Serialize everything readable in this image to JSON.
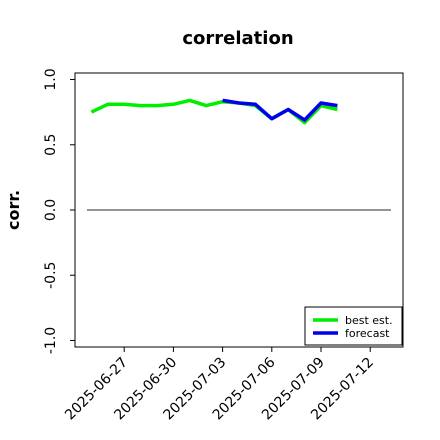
{
  "chart_data": {
    "type": "line",
    "title": "correlation",
    "ylabel": "corr.",
    "xlabel": "",
    "ylim": [
      -1.05,
      1.05
    ],
    "yticks": [
      1.0,
      0.5,
      0.0,
      -0.5,
      -1.0
    ],
    "ytick_labels": [
      "1.0",
      "0.5",
      "0.0",
      "-0.5",
      "-1.0"
    ],
    "xlim": [
      "2025-06-24",
      "2025-07-14"
    ],
    "xticks": [
      "2025-06-27",
      "2025-06-30",
      "2025-07-03",
      "2025-07-06",
      "2025-07-09",
      "2025-07-12"
    ],
    "highlight_tick": {
      "label": "2025-07-03",
      "color": "#228B22"
    },
    "grid": false,
    "legend": "lower-right",
    "reference_line": {
      "y": 0.0,
      "color": "#555555"
    },
    "series": [
      {
        "name": "best est.",
        "color": "#00ee00",
        "points": [
          [
            "2025-06-25",
            0.75
          ],
          [
            "2025-06-26",
            0.81
          ],
          [
            "2025-06-27",
            0.81
          ],
          [
            "2025-06-28",
            0.8
          ],
          [
            "2025-06-29",
            0.8
          ],
          [
            "2025-06-30",
            0.81
          ],
          [
            "2025-07-01",
            0.84
          ],
          [
            "2025-07-02",
            0.8
          ],
          [
            "2025-07-03",
            0.83
          ],
          [
            "2025-07-04",
            0.82
          ],
          [
            "2025-07-05",
            0.8
          ],
          [
            "2025-07-06",
            0.7
          ],
          [
            "2025-07-07",
            0.77
          ],
          [
            "2025-07-08",
            0.67
          ],
          [
            "2025-07-09",
            0.8
          ],
          [
            "2025-07-10",
            0.77
          ]
        ]
      },
      {
        "name": "forecast",
        "color": "#0000ee",
        "points": [
          [
            "2025-07-03",
            0.84
          ],
          [
            "2025-07-04",
            0.82
          ],
          [
            "2025-07-05",
            0.81
          ],
          [
            "2025-07-06",
            0.7
          ],
          [
            "2025-07-07",
            0.77
          ],
          [
            "2025-07-08",
            0.69
          ],
          [
            "2025-07-09",
            0.82
          ],
          [
            "2025-07-10",
            0.8
          ]
        ]
      }
    ]
  }
}
